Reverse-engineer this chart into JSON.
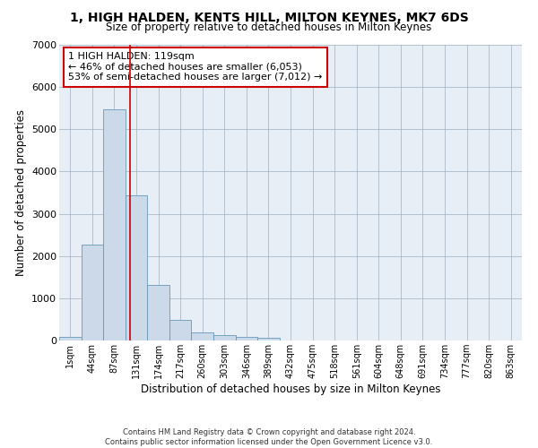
{
  "title": "1, HIGH HALDEN, KENTS HILL, MILTON KEYNES, MK7 6DS",
  "subtitle": "Size of property relative to detached houses in Milton Keynes",
  "xlabel": "Distribution of detached houses by size in Milton Keynes",
  "ylabel": "Number of detached properties",
  "bar_color": "#ccd9e8",
  "bar_edgecolor": "#6699bb",
  "categories": [
    "1sqm",
    "44sqm",
    "87sqm",
    "131sqm",
    "174sqm",
    "217sqm",
    "260sqm",
    "303sqm",
    "346sqm",
    "389sqm",
    "432sqm",
    "475sqm",
    "518sqm",
    "561sqm",
    "604sqm",
    "648sqm",
    "691sqm",
    "734sqm",
    "777sqm",
    "820sqm",
    "863sqm"
  ],
  "values": [
    75,
    2280,
    5470,
    3430,
    1310,
    490,
    200,
    120,
    80,
    55,
    0,
    0,
    0,
    0,
    0,
    0,
    0,
    0,
    0,
    0,
    0
  ],
  "ylim": [
    0,
    7000
  ],
  "yticks": [
    0,
    1000,
    2000,
    3000,
    4000,
    5000,
    6000,
    7000
  ],
  "vline_x": 2.72,
  "vline_color": "#cc0000",
  "annotation_text": "1 HIGH HALDEN: 119sqm\n← 46% of detached houses are smaller (6,053)\n53% of semi-detached houses are larger (7,012) →",
  "annotation_box_color": "#ffffff",
  "annotation_box_edgecolor": "#cc0000",
  "footer1": "Contains HM Land Registry data © Crown copyright and database right 2024.",
  "footer2": "Contains public sector information licensed under the Open Government Licence v3.0."
}
